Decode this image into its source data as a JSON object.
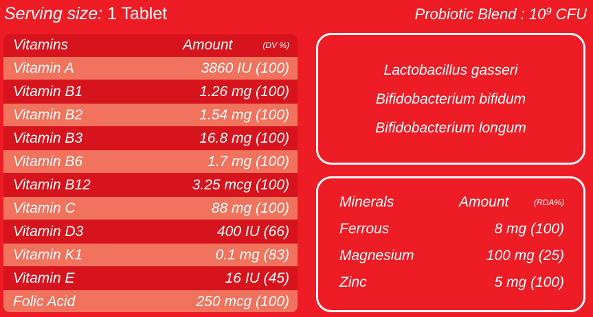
{
  "serving": {
    "label": "Serving size:",
    "value": "1 Tablet"
  },
  "probiotic": {
    "title_prefix": "Probiotic Blend : 10",
    "exponent": "9",
    "title_suffix": " CFU",
    "strains": [
      "Lactobacillus gasseri",
      "Bifidobacterium bifidum",
      "Bifidobacterium longum"
    ]
  },
  "vitamins": {
    "header": {
      "name": "Vitamins",
      "amount": "Amount",
      "unit": "(DV %)"
    },
    "rows": [
      {
        "name": "Vitamin A",
        "amount": "3860  IU (100)"
      },
      {
        "name": "Vitamin B1",
        "amount": "1.26 mg (100)"
      },
      {
        "name": "Vitamin B2",
        "amount": "1.54 mg (100)"
      },
      {
        "name": "Vitamin B3",
        "amount": "16.8 mg (100)"
      },
      {
        "name": "Vitamin B6",
        "amount": "1.7 mg (100)"
      },
      {
        "name": "Vitamin B12",
        "amount": "3.25 mcg (100)"
      },
      {
        "name": "Vitamin C",
        "amount": "88 mg (100)"
      },
      {
        "name": "Vitamin D3",
        "amount": "400 IU (66)"
      },
      {
        "name": "Vitamin K1",
        "amount": "0.1 mg (83)"
      },
      {
        "name": "Vitamin E",
        "amount": "16 IU (45)"
      },
      {
        "name": "Folic Acid",
        "amount": "250 mcg (100)"
      }
    ]
  },
  "minerals": {
    "header": {
      "name": "Minerals",
      "amount": "Amount",
      "unit": "(RDA%)"
    },
    "rows": [
      {
        "name": "Ferrous",
        "amount": "8 mg (100)"
      },
      {
        "name": "Magnesium",
        "amount": "100 mg (25)"
      },
      {
        "name": "Zinc",
        "amount": "5 mg (100)"
      }
    ]
  },
  "colors": {
    "background": "#ee1c25",
    "row_dark": "#d7141d",
    "row_light": "#f1725d",
    "text": "#ffffff"
  }
}
